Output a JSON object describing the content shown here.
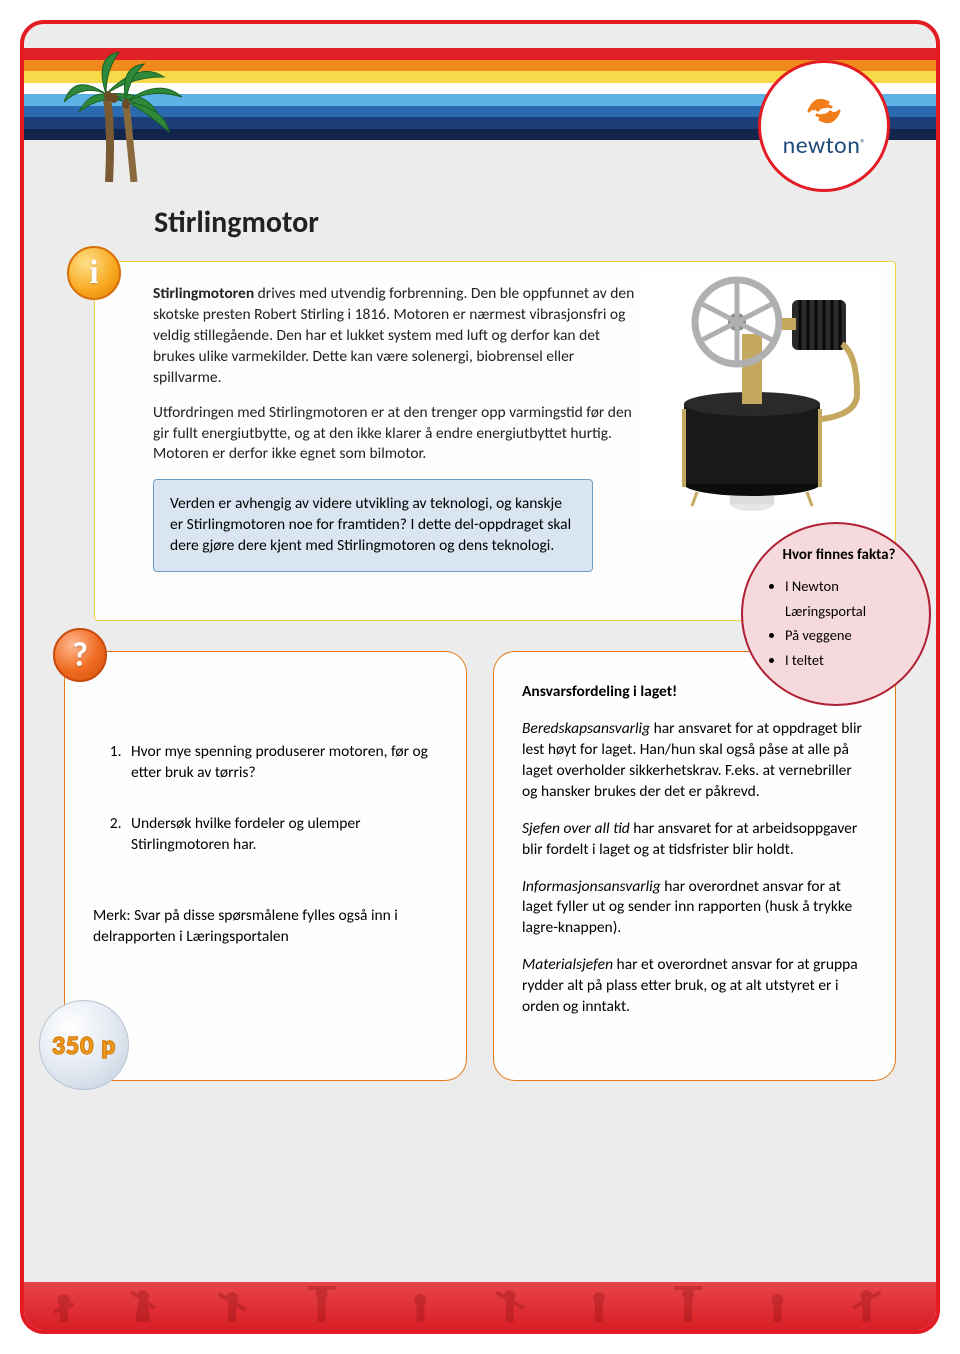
{
  "header": {
    "bands": [
      "#e02128",
      "#f08a1c",
      "#f8d94a",
      "#ffffff",
      "#5db2e6",
      "#2a6bb0",
      "#1c3f7a",
      "#12264d"
    ],
    "logo_text": "newton",
    "logo_reg": "®",
    "logo_swirl_color": "#f07c1a",
    "logo_text_color": "#1e4a7a"
  },
  "title": "Stirlingmotor",
  "intro": {
    "p1_bold": "Stirlingmotoren",
    "p1_rest": " drives med utvendig forbrenning. Den ble oppfunnet av den skotske presten Robert Stirling i 1816. Motoren er nærmest vibrasjonsfri og veldig stillegående. Den har et lukket system med luft og derfor kan det brukes ulike varmekilder. Dette kan være solenergi, biobrensel eller spillvarme.",
    "p2": "Utfordringen med Stirlingmotoren er at den trenger opp varmingstid før den gir fullt energiutbytte, og at den ikke klarer å endre energiutbyttet hurtig. Motoren er derfor ikke egnet som bilmotor.",
    "subbox": "Verden er avhengig av videre utvikling av teknologi, og kanskje er Stirlingmotoren noe for framtiden? I dette del-oppdraget skal dere gjøre dere kjent med Stirlingmotoren og dens teknologi."
  },
  "facts": {
    "title": "Hvor finnes fakta?",
    "items": [
      "I Newton Læringsportal",
      "På veggene",
      "I teltet"
    ]
  },
  "questions": {
    "items": [
      "Hvor mye spenning produserer motoren, før og etter bruk av tørris?",
      "Undersøk hvilke fordeler og ulemper Stirlingmotoren har."
    ],
    "note": "Merk: Svar på disse spørsmålene fylles også inn i delrapporten i Læringsportalen"
  },
  "responsibilities": {
    "title": "Ansvarsfordeling i laget!",
    "items": [
      {
        "role": "Beredskapsansvarlig",
        "text": " har ansvaret for at oppdraget blir lest høyt for laget. Han/hun skal også påse at alle på laget overholder sikkerhetskrav. F.eks. at vernebriller og hansker brukes der det er påkrevd."
      },
      {
        "role": "Sjefen over all tid",
        "text": " har ansvaret for at arbeidsoppgaver blir fordelt i laget og at tidsfrister blir holdt."
      },
      {
        "role": "Informasjonsansvarlig",
        "text": " har overordnet ansvar for at laget fyller ut og sender inn rapporten (husk å trykke lagre-knappen)."
      },
      {
        "role": "Materialsjefen",
        "text": " har et overordnet ansvar for at gruppa rydder alt på plass etter bruk, og at alt utstyret er i orden og inntakt."
      }
    ]
  },
  "points": "350 p",
  "colors": {
    "frame_border": "#e31b23",
    "page_bg": "#ececec",
    "info_border": "#f0d040",
    "subbox_bg": "#d9e6f2",
    "subbox_border": "#6da0c8",
    "fact_bg": "#f5d9dd",
    "fact_border": "#b02035",
    "orange_border": "#e67817",
    "footer_top": "#e8454a",
    "footer_bottom": "#d81e24"
  },
  "image": {
    "alt": "Stirling engine with flywheel on black cylinder base",
    "can_color": "#1a1a1a",
    "pipe_color": "#c4a860",
    "wheel_color": "#c0c0c0",
    "fin_color": "#2a2a2a"
  }
}
